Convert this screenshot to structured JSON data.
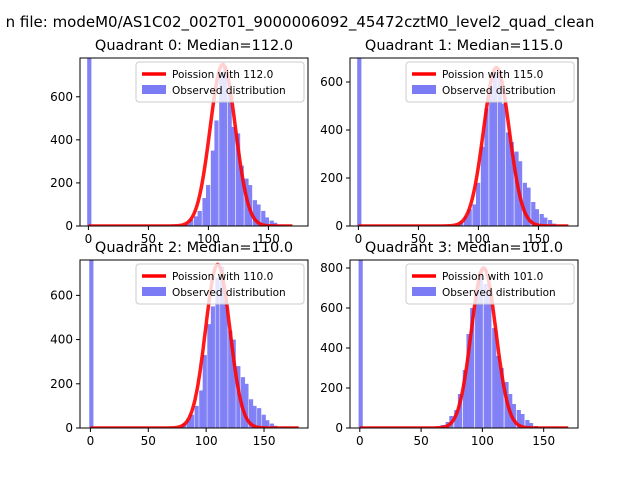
{
  "figure_title": "n file: modeM0/AS1C02_002T01_9000006092_45472cztM0_level2_quad_clean",
  "colors": {
    "observed": "#7b7bf5",
    "poisson": "#ff0000",
    "axis": "#000000",
    "background": "#ffffff"
  },
  "chart_data": [
    {
      "type": "bar",
      "title": "Quadrant 0: Median=112.0",
      "xlim": [
        -7,
        183
      ],
      "ylim": [
        0,
        780
      ],
      "xticks": [
        0,
        50,
        100,
        150
      ],
      "yticks": [
        0,
        200,
        400,
        600
      ],
      "legend": {
        "placement": "top-right",
        "entries": [
          "Poission with 112.0",
          "Observed distribution"
        ]
      },
      "series": [
        {
          "name": "Observed distribution",
          "bin_width": 3.5,
          "bins": [
            [
              -1,
              780
            ],
            [
              81,
              10
            ],
            [
              84,
              30
            ],
            [
              88,
              45
            ],
            [
              91,
              70
            ],
            [
              95,
              130
            ],
            [
              98,
              190
            ],
            [
              102,
              350
            ],
            [
              105,
              490
            ],
            [
              109,
              700
            ],
            [
              112,
              740
            ],
            [
              116,
              620
            ],
            [
              119,
              460
            ],
            [
              123,
              430
            ],
            [
              126,
              280
            ],
            [
              130,
              220
            ],
            [
              133,
              190
            ],
            [
              137,
              120
            ],
            [
              140,
              100
            ],
            [
              144,
              70
            ],
            [
              147,
              40
            ],
            [
              151,
              25
            ],
            [
              154,
              15
            ],
            [
              158,
              5
            ]
          ]
        },
        {
          "name": "Poission with 112.0",
          "mean": 112,
          "peak": 750,
          "x_range": [
            0,
            170
          ]
        }
      ]
    },
    {
      "type": "bar",
      "title": "Quadrant 1: Median=115.0",
      "xlim": [
        -7,
        183
      ],
      "ylim": [
        0,
        700
      ],
      "xticks": [
        0,
        50,
        100,
        150
      ],
      "yticks": [
        0,
        200,
        400,
        600
      ],
      "legend": {
        "placement": "top-right",
        "entries": [
          "Poission with 115.0",
          "Observed distribution"
        ]
      },
      "series": [
        {
          "name": "Observed distribution",
          "bin_width": 3.5,
          "bins": [
            [
              -1,
              700
            ],
            [
              84,
              15
            ],
            [
              88,
              40
            ],
            [
              91,
              70
            ],
            [
              95,
              90
            ],
            [
              98,
              180
            ],
            [
              102,
              330
            ],
            [
              105,
              490
            ],
            [
              109,
              580
            ],
            [
              112,
              640
            ],
            [
              116,
              650
            ],
            [
              119,
              510
            ],
            [
              123,
              390
            ],
            [
              126,
              350
            ],
            [
              130,
              310
            ],
            [
              133,
              270
            ],
            [
              137,
              180
            ],
            [
              140,
              160
            ],
            [
              144,
              100
            ],
            [
              147,
              70
            ],
            [
              151,
              50
            ],
            [
              154,
              35
            ],
            [
              158,
              25
            ],
            [
              161,
              10
            ]
          ]
        },
        {
          "name": "Poission with 115.0",
          "mean": 115,
          "peak": 660,
          "x_range": [
            0,
            175
          ]
        }
      ]
    },
    {
      "type": "bar",
      "title": "Quadrant 2: Median=110.0",
      "xlim": [
        -9,
        188
      ],
      "ylim": [
        0,
        760
      ],
      "xticks": [
        0,
        50,
        100,
        150
      ],
      "yticks": [
        0,
        200,
        400,
        600
      ],
      "legend": {
        "placement": "top-right",
        "entries": [
          "Poission with 110.0",
          "Observed distribution"
        ]
      },
      "series": [
        {
          "name": "Observed distribution",
          "bin_width": 3.6,
          "bins": [
            [
              -1,
              760
            ],
            [
              79,
              20
            ],
            [
              83,
              40
            ],
            [
              86,
              60
            ],
            [
              90,
              100
            ],
            [
              94,
              170
            ],
            [
              97,
              330
            ],
            [
              101,
              470
            ],
            [
              104,
              550
            ],
            [
              108,
              680
            ],
            [
              112,
              730
            ],
            [
              115,
              580
            ],
            [
              119,
              440
            ],
            [
              122,
              400
            ],
            [
              126,
              280
            ],
            [
              130,
              230
            ],
            [
              133,
              200
            ],
            [
              137,
              130
            ],
            [
              140,
              100
            ],
            [
              144,
              90
            ],
            [
              148,
              60
            ],
            [
              151,
              35
            ],
            [
              155,
              20
            ],
            [
              158,
              10
            ]
          ]
        },
        {
          "name": "Poission with 110.0",
          "mean": 110,
          "peak": 740,
          "x_range": [
            0,
            180
          ]
        }
      ]
    },
    {
      "type": "bar",
      "title": "Quadrant 3: Median=101.0",
      "xlim": [
        -8,
        178
      ],
      "ylim": [
        0,
        840
      ],
      "xticks": [
        0,
        50,
        100,
        150
      ],
      "yticks": [
        0,
        200,
        400,
        600,
        800
      ],
      "legend": {
        "placement": "top-right",
        "entries": [
          "Poission with 101.0",
          "Observed distribution"
        ]
      },
      "series": [
        {
          "name": "Observed distribution",
          "bin_width": 3.4,
          "bins": [
            [
              -1,
              840
            ],
            [
              66,
              15
            ],
            [
              70,
              30
            ],
            [
              73,
              60
            ],
            [
              77,
              90
            ],
            [
              80,
              170
            ],
            [
              84,
              290
            ],
            [
              87,
              470
            ],
            [
              90,
              600
            ],
            [
              94,
              690
            ],
            [
              97,
              780
            ],
            [
              101,
              720
            ],
            [
              104,
              690
            ],
            [
              108,
              500
            ],
            [
              111,
              360
            ],
            [
              114,
              300
            ],
            [
              118,
              230
            ],
            [
              121,
              170
            ],
            [
              124,
              120
            ],
            [
              128,
              90
            ],
            [
              131,
              70
            ],
            [
              135,
              40
            ],
            [
              138,
              25
            ],
            [
              142,
              10
            ]
          ]
        },
        {
          "name": "Poission with 101.0",
          "mean": 101,
          "peak": 800,
          "x_range": [
            0,
            170
          ]
        }
      ]
    }
  ]
}
